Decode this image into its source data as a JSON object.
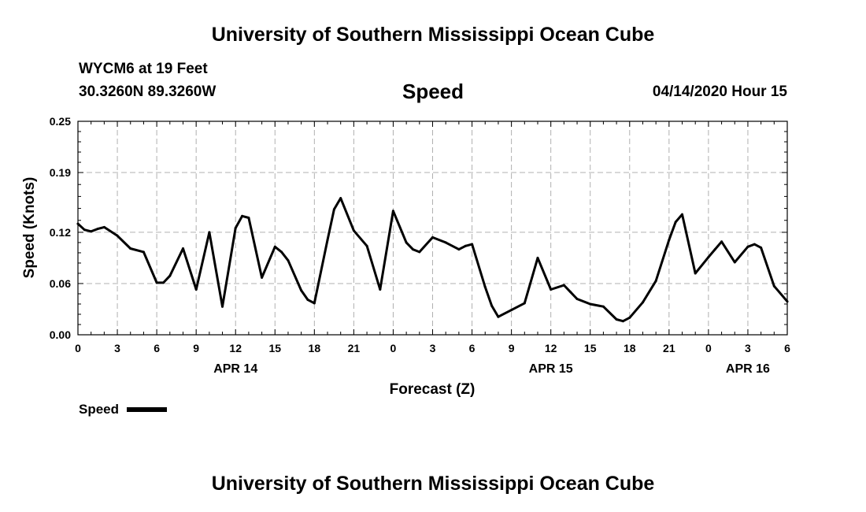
{
  "header": {
    "title": "University of Southern Mississippi Ocean Cube",
    "station": "WYCM6 at 19 Feet",
    "location": "30.3260N 89.3260W",
    "variable": "Speed",
    "datetime": "04/14/2020 Hour 15"
  },
  "footer": {
    "title": "University of Southern Mississippi Ocean Cube"
  },
  "chart_data": {
    "type": "line",
    "title": "Speed",
    "xlabel": "Forecast (Z)",
    "ylabel": "Speed (Knots)",
    "xlim": [
      0,
      54
    ],
    "ylim": [
      0.0,
      0.25
    ],
    "yticks": [
      0.0,
      0.06,
      0.12,
      0.19,
      0.25
    ],
    "ytick_labels": [
      "0.00",
      "0.06",
      "0.12",
      "0.19",
      "0.25"
    ],
    "xticks": [
      0,
      3,
      6,
      9,
      12,
      15,
      18,
      21,
      24,
      27,
      30,
      33,
      36,
      39,
      42,
      45,
      48,
      51,
      54
    ],
    "xtick_labels": [
      "0",
      "3",
      "6",
      "9",
      "12",
      "15",
      "18",
      "21",
      "0",
      "3",
      "6",
      "9",
      "12",
      "15",
      "18",
      "21",
      "0",
      "3",
      "6"
    ],
    "date_labels": [
      {
        "x": 12,
        "label": "APR 14"
      },
      {
        "x": 36,
        "label": "APR 15"
      },
      {
        "x": 51,
        "label": "APR 16"
      }
    ],
    "grid": true,
    "legend": [
      {
        "label": "Speed",
        "color": "#000000"
      }
    ],
    "series": [
      {
        "name": "Speed",
        "color": "#000000",
        "x": [
          0,
          0.5,
          1,
          1.5,
          2,
          3,
          4,
          5,
          6,
          6.5,
          7,
          8,
          9,
          10,
          11,
          12,
          12.5,
          13,
          14,
          15,
          15.5,
          16,
          17,
          17.5,
          18,
          19,
          19.5,
          20,
          21,
          22,
          23,
          24,
          25,
          25.5,
          26,
          27,
          28,
          29,
          29.5,
          30,
          31,
          31.5,
          32,
          33,
          34,
          35,
          36,
          37,
          37.5,
          38,
          39,
          40,
          41,
          41.5,
          42,
          43,
          44,
          45,
          45.5,
          46,
          47,
          48,
          48.5,
          49,
          50,
          51,
          51.5,
          52,
          53,
          54
        ],
        "values": [
          0.13,
          0.123,
          0.121,
          0.124,
          0.126,
          0.116,
          0.101,
          0.097,
          0.061,
          0.061,
          0.069,
          0.101,
          0.053,
          0.12,
          0.033,
          0.125,
          0.139,
          0.137,
          0.067,
          0.103,
          0.097,
          0.087,
          0.052,
          0.041,
          0.037,
          0.111,
          0.147,
          0.16,
          0.122,
          0.104,
          0.053,
          0.145,
          0.108,
          0.1,
          0.097,
          0.114,
          0.108,
          0.1,
          0.104,
          0.106,
          0.056,
          0.034,
          0.021,
          0.029,
          0.037,
          0.09,
          0.053,
          0.058,
          0.05,
          0.042,
          0.036,
          0.033,
          0.018,
          0.016,
          0.02,
          0.038,
          0.063,
          0.111,
          0.132,
          0.141,
          0.072,
          0.091,
          0.1,
          0.109,
          0.085,
          0.103,
          0.106,
          0.102,
          0.057,
          0.039
        ]
      }
    ]
  }
}
